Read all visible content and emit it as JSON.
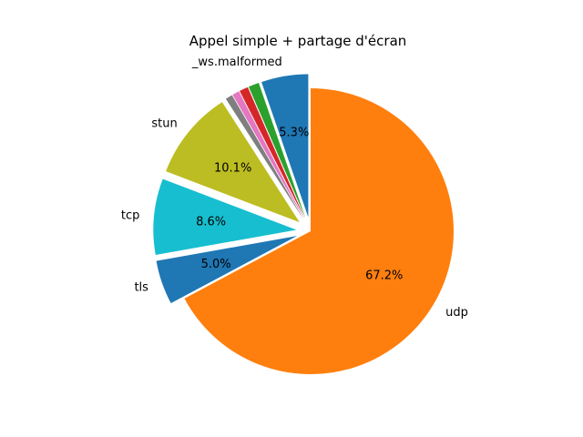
{
  "chart_data": {
    "type": "pie",
    "title": "Appel simple + partage d'écran",
    "start_angle_deg": 90,
    "direction": "counterclockwise",
    "slices": [
      {
        "label": "_ws.malformed",
        "value": 5.3,
        "pct_text": "5.3%",
        "color": "#1f77b4",
        "explode": 0.1
      },
      {
        "label": "",
        "value": 1.2,
        "pct_text": "",
        "color": "#2ca02c",
        "explode": 0.1
      },
      {
        "label": "",
        "value": 1.0,
        "pct_text": "",
        "color": "#d62728",
        "explode": 0.1
      },
      {
        "label": "",
        "value": 0.8,
        "pct_text": "",
        "color": "#e377c2",
        "explode": 0.1
      },
      {
        "label": "",
        "value": 0.8,
        "pct_text": "",
        "color": "#7f7f7f",
        "explode": 0.1
      },
      {
        "label": "stun",
        "value": 10.1,
        "pct_text": "10.1%",
        "color": "#bcbd22",
        "explode": 0.1
      },
      {
        "label": "tcp",
        "value": 8.6,
        "pct_text": "8.6%",
        "color": "#17becf",
        "explode": 0.1
      },
      {
        "label": "tls",
        "value": 5.0,
        "pct_text": "5.0%",
        "color": "#1f77b4",
        "explode": 0.1
      },
      {
        "label": "udp",
        "value": 67.2,
        "pct_text": "67.2%",
        "color": "#ff7f0e",
        "explode": 0.0
      }
    ]
  }
}
